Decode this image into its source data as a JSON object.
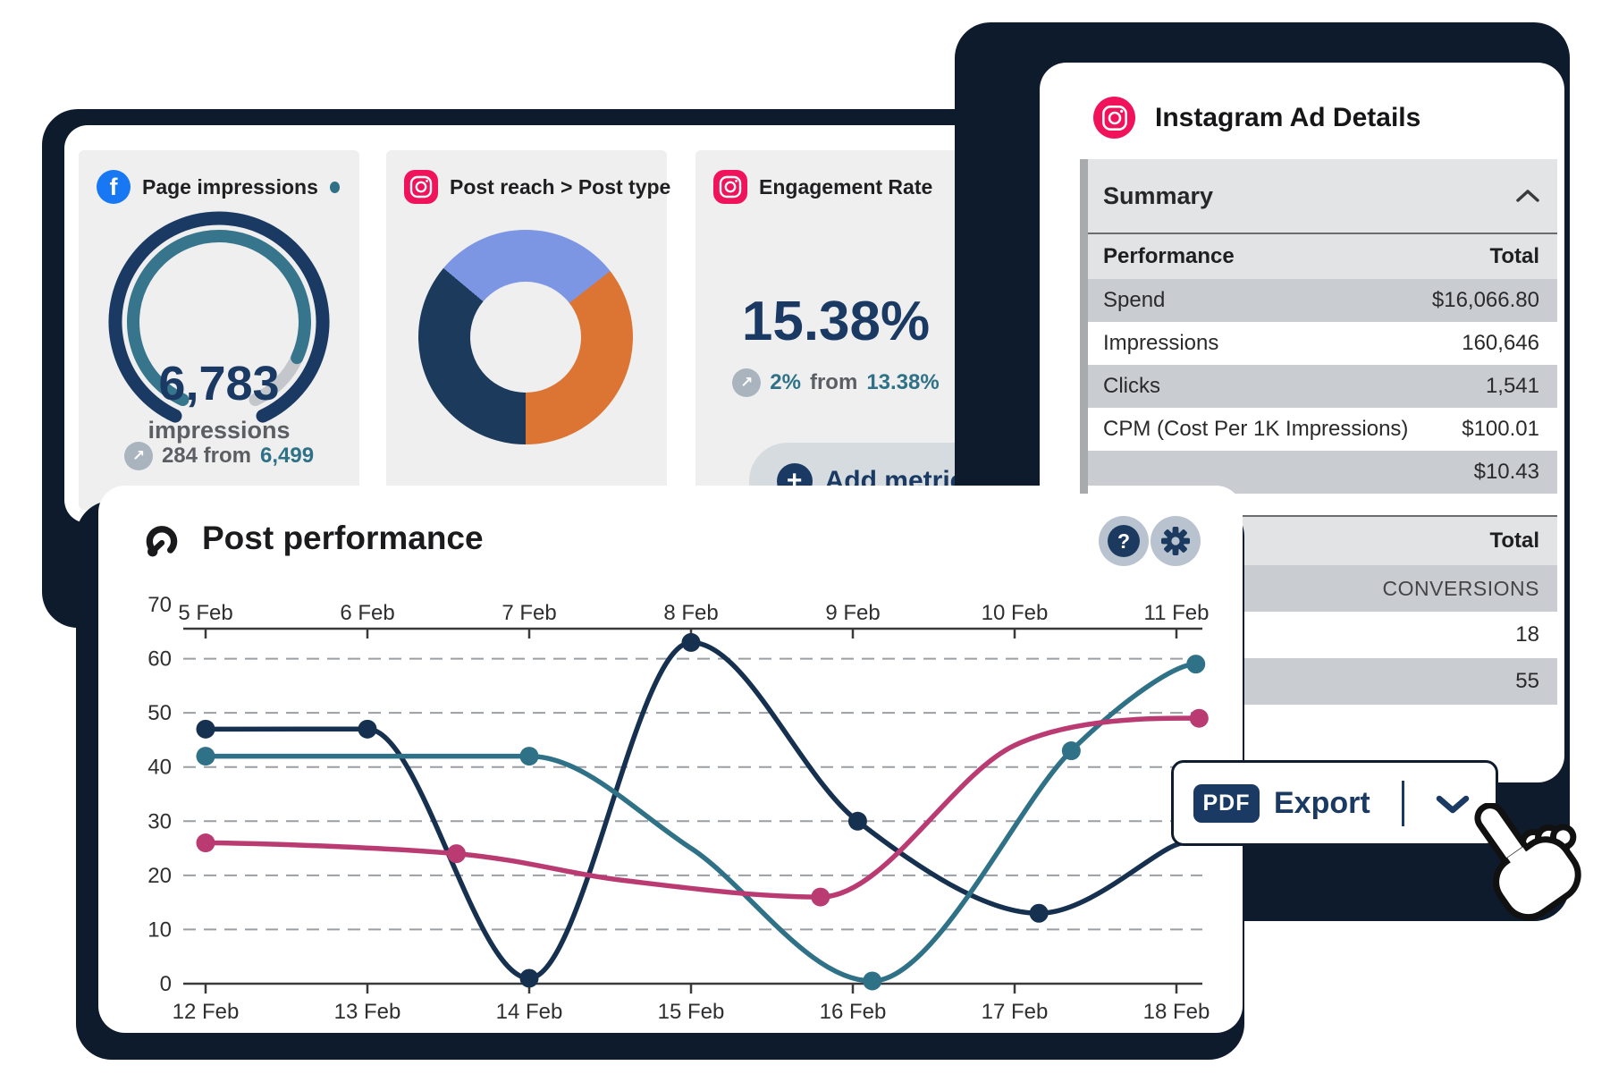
{
  "colors": {
    "navy_text": "#1b3a63",
    "navy_line": "#16304f",
    "teal": "#2f7186",
    "pink": "#b93b72",
    "facebook_blue": "#1877f2",
    "instagram_pink": "#f0135c",
    "shadow_navy": "#0d1b2c",
    "gauge_outer": "#1b3a63",
    "gauge_inner": "#36758b",
    "gauge_rest": "#c3c7cb"
  },
  "cards": {
    "page_impressions": {
      "icon": "facebook-icon",
      "title": "Page impressions",
      "value": "6,783",
      "unit": "impressions",
      "delta_text": "284 from",
      "delta_ref": "6,499",
      "gauge_progress": 0.87
    },
    "post_reach": {
      "icon": "instagram-icon",
      "title": "Post reach > Post type",
      "donut": {
        "start_angle": -50,
        "segments": [
          {
            "color": "#7d96e4",
            "degrees": 102
          },
          {
            "color": "#dc7434",
            "degrees": 128
          },
          {
            "color": "#1b3a5c",
            "degrees": 130
          }
        ]
      }
    },
    "engagement": {
      "icon": "instagram-icon",
      "title": "Engagement Rate",
      "value": "15.38%",
      "delta_value": "2%",
      "delta_mid": "from",
      "delta_ref": "13.38%"
    }
  },
  "add_metric_label": "Add metric",
  "post_performance": {
    "title": "Post performance",
    "chart_data": {
      "type": "line",
      "x_top": [
        "5 Feb",
        "6 Feb",
        "7 Feb",
        "8 Feb",
        "9 Feb",
        "10 Feb",
        "11 Feb"
      ],
      "x_bottom": [
        "12 Feb",
        "13 Feb",
        "14 Feb",
        "15 Feb",
        "16 Feb",
        "17 Feb",
        "18 Feb"
      ],
      "y_ticks": [
        70,
        60,
        50,
        40,
        30,
        20,
        10,
        0
      ],
      "ylim": [
        0,
        70
      ],
      "grid": "dashed-horizontal",
      "series": [
        {
          "name": "navy-series",
          "color": "#16304f",
          "points": [
            [
              0,
              47,
              1
            ],
            [
              1,
              47,
              1
            ],
            [
              2,
              1,
              1
            ],
            [
              3,
              63,
              1
            ],
            [
              4.03,
              30,
              1
            ],
            [
              5.15,
              13,
              1
            ],
            [
              6.05,
              26,
              0
            ]
          ]
        },
        {
          "name": "teal-series",
          "color": "#2f7186",
          "points": [
            [
              0,
              42,
              1
            ],
            [
              1,
              42,
              0
            ],
            [
              2,
              42,
              1
            ],
            [
              3,
              25,
              0
            ],
            [
              4.12,
              0.5,
              1
            ],
            [
              5.35,
              43,
              1
            ],
            [
              6.12,
              59,
              1
            ]
          ]
        },
        {
          "name": "pink-series",
          "color": "#b93b72",
          "points": [
            [
              0,
              26,
              1
            ],
            [
              1.55,
              24,
              1
            ],
            [
              2.6,
              19,
              0
            ],
            [
              3.8,
              16,
              1
            ],
            [
              5,
              44,
              0
            ],
            [
              6.14,
              49,
              1
            ]
          ]
        }
      ]
    }
  },
  "instagram_panel": {
    "title": "Instagram Ad Details",
    "summary_label": "Summary",
    "table1": {
      "header": [
        "Performance",
        "Total"
      ],
      "rows": [
        [
          "Spend",
          "$16,066.80"
        ],
        [
          "Impressions",
          "160,646"
        ],
        [
          "Clicks",
          "1,541"
        ],
        [
          "CPM (Cost Per 1K Impressions)",
          "$100.01"
        ],
        [
          "",
          "$10.43"
        ]
      ]
    },
    "table2": {
      "header": [
        "",
        "Total"
      ],
      "rows": [
        [
          "",
          "CONVERSIONS"
        ],
        [
          "",
          "18"
        ],
        [
          "",
          "55"
        ]
      ]
    }
  },
  "export": {
    "badge": "PDF",
    "label": "Export"
  }
}
